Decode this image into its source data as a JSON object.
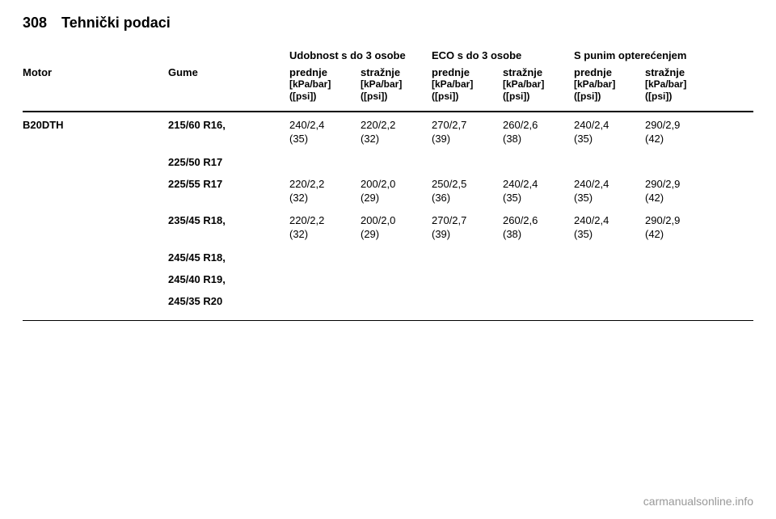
{
  "page_number": "308",
  "page_title": "Tehnički podaci",
  "header_groups": {
    "udobnost": "Udobnost s do 3 osobe",
    "eco": "ECO s do 3 osobe",
    "spunim": "S punim opterećenjem"
  },
  "col_labels": {
    "motor": "Motor",
    "gume": "Gume",
    "prednje": "prednje",
    "straznje": "stražnje"
  },
  "units_line1": "[kPa/bar]",
  "units_line2": "([psi])",
  "motor": "B20DTH",
  "tyre_blocks": [
    {
      "tyres": [
        "215/60 R16,",
        "225/50 R17"
      ],
      "vals": [
        {
          "l1": "240/2,4",
          "l2": "(35)"
        },
        {
          "l1": "220/2,2",
          "l2": "(32)"
        },
        {
          "l1": "270/2,7",
          "l2": "(39)"
        },
        {
          "l1": "260/2,6",
          "l2": "(38)"
        },
        {
          "l1": "240/2,4",
          "l2": "(35)"
        },
        {
          "l1": "290/2,9",
          "l2": "(42)"
        }
      ]
    },
    {
      "tyres": [
        "225/55 R17"
      ],
      "vals": [
        {
          "l1": "220/2,2",
          "l2": "(32)"
        },
        {
          "l1": "200/2,0",
          "l2": "(29)"
        },
        {
          "l1": "250/2,5",
          "l2": "(36)"
        },
        {
          "l1": "240/2,4",
          "l2": "(35)"
        },
        {
          "l1": "240/2,4",
          "l2": "(35)"
        },
        {
          "l1": "290/2,9",
          "l2": "(42)"
        }
      ]
    },
    {
      "tyres": [
        "235/45 R18,",
        "245/45 R18,",
        "245/40 R19,",
        "245/35 R20"
      ],
      "vals": [
        {
          "l1": "220/2,2",
          "l2": "(32)"
        },
        {
          "l1": "200/2,0",
          "l2": "(29)"
        },
        {
          "l1": "270/2,7",
          "l2": "(39)"
        },
        {
          "l1": "260/2,6",
          "l2": "(38)"
        },
        {
          "l1": "240/2,4",
          "l2": "(35)"
        },
        {
          "l1": "290/2,9",
          "l2": "(42)"
        }
      ]
    }
  ],
  "footer": "carmanualsonline.info"
}
